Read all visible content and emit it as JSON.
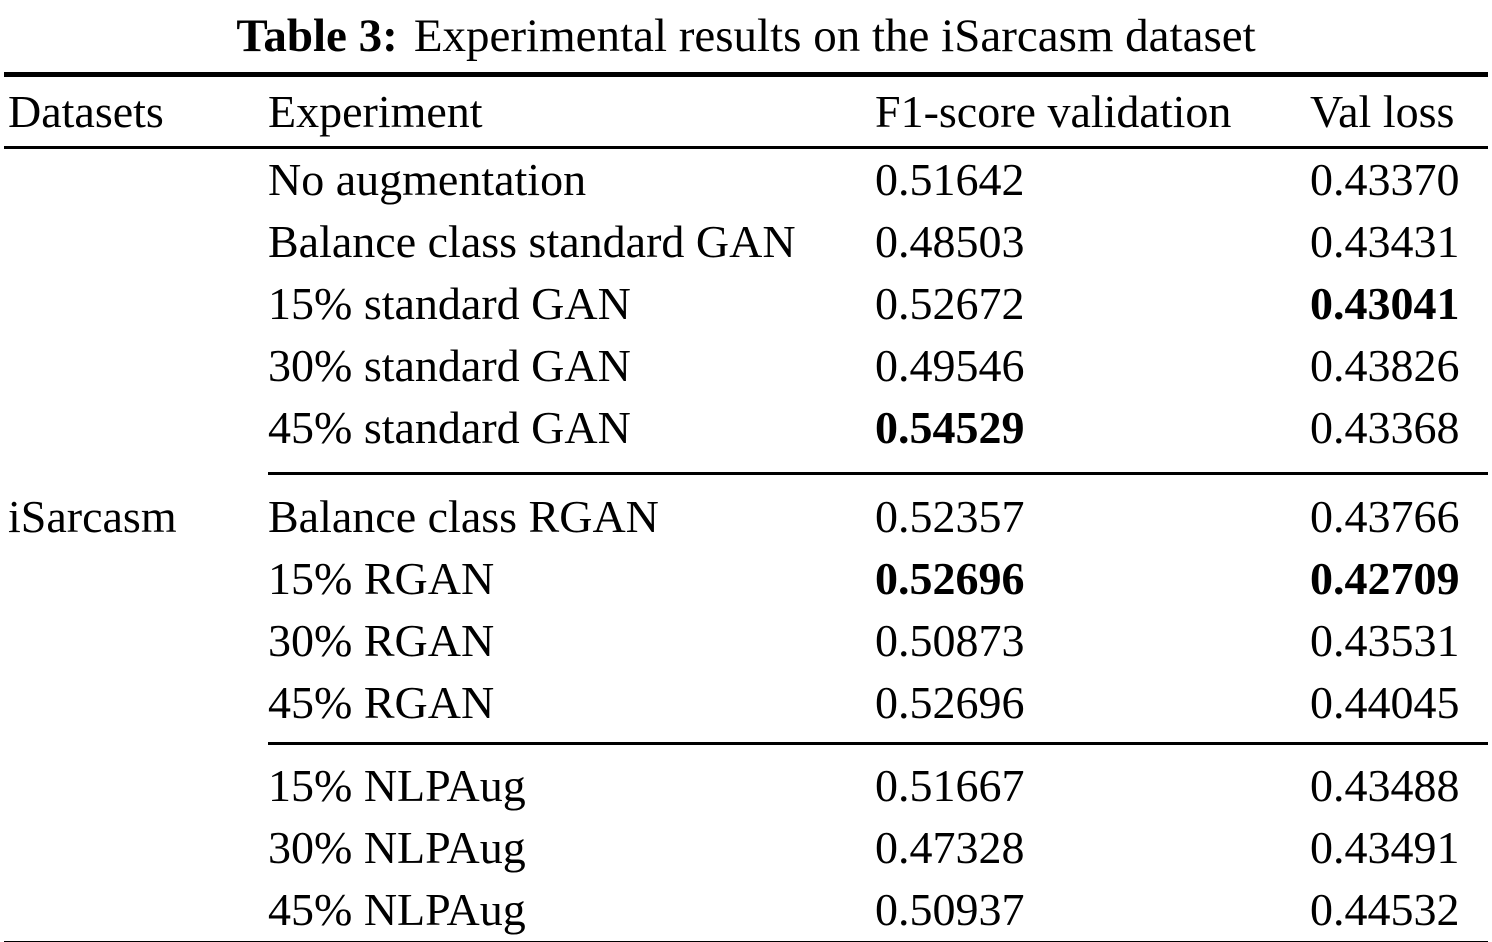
{
  "caption": {
    "label": "Table 3:",
    "text": "Experimental results on the iSarcasm dataset"
  },
  "colors": {
    "text": "#000000",
    "background": "#ffffff",
    "rule": "#000000"
  },
  "table": {
    "headers": {
      "datasets": "Datasets",
      "experiment": "Experiment",
      "f1": "F1-score validation",
      "val_loss": "Val loss"
    },
    "dataset_label": "iSarcasm",
    "rows": [
      {
        "dataset": "",
        "experiment": "No augmentation",
        "f1": "0.51642",
        "f1_bold": false,
        "val_loss": "0.43370",
        "val_bold": false
      },
      {
        "dataset": "",
        "experiment": "Balance class standard GAN",
        "f1": "0.48503",
        "f1_bold": false,
        "val_loss": "0.43431",
        "val_bold": false
      },
      {
        "dataset": "",
        "experiment": "15% standard GAN",
        "f1": "0.52672",
        "f1_bold": false,
        "val_loss": "0.43041",
        "val_bold": true
      },
      {
        "dataset": "",
        "experiment": "30% standard GAN",
        "f1": "0.49546",
        "f1_bold": false,
        "val_loss": "0.43826",
        "val_bold": false
      },
      {
        "dataset": "",
        "experiment": "45% standard GAN",
        "f1": "0.54529",
        "f1_bold": true,
        "val_loss": "0.43368",
        "val_bold": false
      },
      {
        "dataset": "iSarcasm",
        "experiment": "Balance class RGAN",
        "f1": "0.52357",
        "f1_bold": false,
        "val_loss": "0.43766",
        "val_bold": false
      },
      {
        "dataset": "",
        "experiment": "15% RGAN",
        "f1": "0.52696",
        "f1_bold": true,
        "val_loss": "0.42709",
        "val_bold": true
      },
      {
        "dataset": "",
        "experiment": "30% RGAN",
        "f1": "0.50873",
        "f1_bold": false,
        "val_loss": "0.43531",
        "val_bold": false
      },
      {
        "dataset": "",
        "experiment": "45% RGAN",
        "f1": "0.52696",
        "f1_bold": false,
        "val_loss": "0.44045",
        "val_bold": false
      },
      {
        "dataset": "",
        "experiment": "15% NLPAug",
        "f1": "0.51667",
        "f1_bold": false,
        "val_loss": "0.43488",
        "val_bold": false
      },
      {
        "dataset": "",
        "experiment": "30% NLPAug",
        "f1": "0.47328",
        "f1_bold": false,
        "val_loss": "0.43491",
        "val_bold": false
      },
      {
        "dataset": "",
        "experiment": "45% NLPAug",
        "f1": "0.50937",
        "f1_bold": false,
        "val_loss": "0.44532",
        "val_bold": false
      }
    ]
  }
}
